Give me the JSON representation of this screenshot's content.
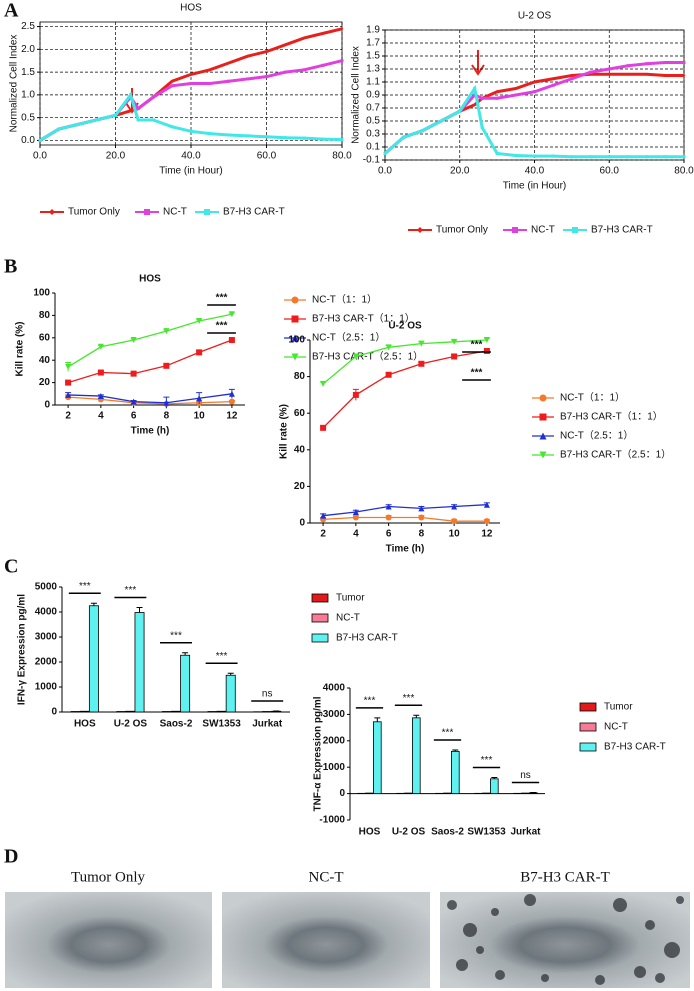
{
  "panel_labels": [
    "A",
    "B",
    "C",
    "D"
  ],
  "chart_data": [
    {
      "type": "line",
      "title": "HOS",
      "xlabel": "Time (in Hour)",
      "ylabel": "Normalized Cell Index",
      "x": [
        0,
        5,
        10,
        15,
        20,
        24,
        26,
        30,
        35,
        40,
        45,
        50,
        55,
        60,
        65,
        70,
        75,
        80
      ],
      "xlim": [
        0,
        80
      ],
      "xticks": [
        {
          "value": 0,
          "label": "0.0"
        },
        {
          "value": 20,
          "label": "20.0"
        },
        {
          "value": 40,
          "label": "40.0"
        },
        {
          "value": 60,
          "label": "60.0"
        },
        {
          "value": 80,
          "label": "80.0"
        }
      ],
      "ylim": [
        -0.1,
        2.6
      ],
      "yticks": [
        {
          "value": 0,
          "label": "0.0"
        },
        0.5,
        {
          "value": 1,
          "label": "1.0"
        },
        1.5,
        {
          "value": 2,
          "label": "2.0"
        },
        2.5
      ],
      "grid": true,
      "legend": "bottom",
      "series": [
        {
          "name": "Tumor Only",
          "color": "#e8201c",
          "marker": "diamond",
          "values": [
            0,
            0.25,
            0.35,
            0.45,
            0.55,
            0.65,
            0.7,
            0.95,
            1.3,
            1.45,
            1.55,
            1.7,
            1.85,
            1.95,
            2.1,
            2.25,
            2.35,
            2.45
          ]
        },
        {
          "name": "NC-T",
          "color": "#e040e0",
          "marker": "square",
          "values": [
            0,
            0.25,
            0.35,
            0.45,
            0.55,
            0.95,
            0.7,
            0.95,
            1.2,
            1.25,
            1.25,
            1.3,
            1.35,
            1.4,
            1.5,
            1.55,
            1.65,
            1.75
          ]
        },
        {
          "name": "B7-H3 CAR-T",
          "color": "#40e8e8",
          "marker": "square",
          "values": [
            0,
            0.25,
            0.35,
            0.45,
            0.55,
            1.0,
            0.45,
            0.45,
            0.3,
            0.2,
            0.15,
            0.12,
            0.1,
            0.08,
            0.06,
            0.05,
            0.03,
            0.02
          ]
        }
      ]
    },
    {
      "type": "line",
      "title": "U-2 OS",
      "xlabel": "Time (in Hour)",
      "ylabel": "Normalized Cell Index",
      "x": [
        0,
        5,
        10,
        15,
        20,
        24,
        26,
        30,
        35,
        40,
        45,
        50,
        55,
        60,
        65,
        70,
        75,
        80
      ],
      "xlim": [
        0,
        80
      ],
      "xticks": [
        {
          "value": 0,
          "label": "0.0"
        },
        {
          "value": 20,
          "label": "20.0"
        },
        {
          "value": 40,
          "label": "40.0"
        },
        {
          "value": 60,
          "label": "60.0"
        },
        {
          "value": 80,
          "label": "80.0"
        }
      ],
      "ylim": [
        -0.1,
        1.9
      ],
      "yticks": [
        -0.1,
        0.1,
        0.3,
        0.5,
        0.7,
        0.9,
        1.1,
        1.3,
        1.5,
        1.7,
        1.9
      ],
      "grid": true,
      "legend": "bottom",
      "series": [
        {
          "name": "Tumor Only",
          "color": "#e8201c",
          "marker": "diamond",
          "values": [
            0,
            0.25,
            0.35,
            0.5,
            0.65,
            0.75,
            0.85,
            0.95,
            1.0,
            1.1,
            1.15,
            1.2,
            1.22,
            1.22,
            1.22,
            1.22,
            1.2,
            1.2
          ]
        },
        {
          "name": "NC-T",
          "color": "#e040e0",
          "marker": "square",
          "values": [
            0,
            0.25,
            0.35,
            0.5,
            0.65,
            0.9,
            0.85,
            0.85,
            0.9,
            0.95,
            1.05,
            1.15,
            1.25,
            1.3,
            1.35,
            1.38,
            1.4,
            1.4
          ]
        },
        {
          "name": "B7-H3 CAR-T",
          "color": "#40e8e8",
          "marker": "square",
          "values": [
            0,
            0.25,
            0.35,
            0.5,
            0.65,
            1.0,
            0.4,
            0.0,
            -0.03,
            -0.04,
            -0.04,
            -0.05,
            -0.05,
            -0.05,
            -0.05,
            -0.05,
            -0.05,
            -0.05
          ]
        }
      ]
    },
    {
      "type": "line",
      "title": "HOS",
      "xlabel": "Time (h)",
      "ylabel": "Kill rate (%)",
      "x": [
        2,
        4,
        6,
        8,
        10,
        12
      ],
      "xlim": [
        1.2,
        12.8
      ],
      "xticks": [
        2,
        4,
        6,
        8,
        10,
        12
      ],
      "ylim": [
        0,
        100
      ],
      "yticks": [
        0,
        20,
        40,
        60,
        80,
        100
      ],
      "grid": false,
      "legend": "right",
      "annotations": [
        "***",
        "***"
      ],
      "series": [
        {
          "name": "NC-T（1：1）",
          "color": "#f5792a",
          "marker": "circle",
          "values": [
            7,
            5,
            2,
            1,
            2,
            3
          ],
          "errors": [
            2,
            1,
            1,
            1,
            1,
            1
          ]
        },
        {
          "name": "B7-H3 CAR-T（1：1）",
          "color": "#ee1c1c",
          "marker": "square",
          "values": [
            20,
            29,
            28,
            35,
            47,
            58
          ],
          "errors": [
            1,
            1,
            1,
            1,
            1,
            1
          ]
        },
        {
          "name": "NC-T（2.5：1）",
          "color": "#2030d0",
          "marker": "triangle",
          "values": [
            9,
            8,
            3,
            2,
            6,
            10
          ],
          "errors": [
            2,
            1,
            1,
            5,
            5,
            4
          ]
        },
        {
          "name": "B7-H3 CAR-T（2.5：1）",
          "color": "#44e82c",
          "marker": "triangle-down",
          "values": [
            34,
            52,
            58,
            66,
            75,
            81
          ],
          "errors": [
            4,
            1,
            1,
            1,
            1,
            1
          ]
        }
      ]
    },
    {
      "type": "line",
      "title": "U-2 OS",
      "xlabel": "Time (h)",
      "ylabel": "Kill rate (%)",
      "x": [
        2,
        4,
        6,
        8,
        10,
        12
      ],
      "xlim": [
        1.2,
        12.8
      ],
      "xticks": [
        2,
        4,
        6,
        8,
        10,
        12
      ],
      "ylim": [
        0,
        100
      ],
      "yticks": [
        0,
        20,
        40,
        60,
        80,
        100
      ],
      "grid": false,
      "legend": "right",
      "annotations": [
        "***",
        "***"
      ],
      "series": [
        {
          "name": "NC-T（1：1）",
          "color": "#f5792a",
          "marker": "circle",
          "values": [
            2,
            3,
            3,
            3,
            1,
            1
          ],
          "errors": [
            1,
            1,
            1,
            1,
            1,
            1
          ]
        },
        {
          "name": "B7-H3 CAR-T（1：1）",
          "color": "#ee1c1c",
          "marker": "square",
          "values": [
            52,
            70,
            81,
            87,
            91,
            94
          ],
          "errors": [
            1,
            3,
            1,
            1,
            1,
            1
          ]
        },
        {
          "name": "NC-T（2.5：1）",
          "color": "#2030d0",
          "marker": "triangle",
          "values": [
            4,
            6,
            9,
            8,
            9,
            10
          ],
          "errors": [
            1,
            1,
            1,
            1,
            1,
            1
          ]
        },
        {
          "name": "B7-H3 CAR-T（2.5：1）",
          "color": "#44e82c",
          "marker": "triangle-down",
          "values": [
            76,
            91,
            96,
            98,
            99,
            100
          ],
          "errors": [
            1,
            1,
            1,
            1,
            1,
            1
          ]
        }
      ]
    },
    {
      "type": "bar",
      "ylabel": "IFN-γ Expression pg/ml",
      "categories": [
        "HOS",
        "U-2 OS",
        "Saos-2",
        "SW1353",
        "Jurkat"
      ],
      "ylim": [
        0,
        5000
      ],
      "yticks": [
        0,
        1000,
        2000,
        3000,
        4000,
        5000
      ],
      "grid": false,
      "legend": "right",
      "annotations": [
        "***",
        "***",
        "***",
        "***",
        "ns"
      ],
      "series": [
        {
          "name": "Tumor",
          "color": "#e31a1c",
          "values": [
            20,
            20,
            20,
            20,
            10
          ]
        },
        {
          "name": "NC-T",
          "color": "#f77b95",
          "values": [
            30,
            30,
            30,
            30,
            20
          ]
        },
        {
          "name": "B7-H3 CAR-T",
          "color": "#5ff0f0",
          "values": [
            4250,
            3980,
            2270,
            1470,
            30
          ],
          "errors": [
            100,
            200,
            100,
            80,
            10
          ]
        }
      ]
    },
    {
      "type": "bar",
      "ylabel": "TNF-α Expression pg/ml",
      "categories": [
        "HOS",
        "U-2 OS",
        "Saos-2",
        "SW1353",
        "Jurkat"
      ],
      "ylim": [
        -1000,
        4000
      ],
      "yticks": [
        -1000,
        0,
        1000,
        2000,
        3000,
        4000
      ],
      "grid": false,
      "legend": "right",
      "annotations": [
        "***",
        "***",
        "***",
        "***",
        "ns"
      ],
      "series": [
        {
          "name": "Tumor",
          "color": "#e31a1c",
          "values": [
            10,
            10,
            10,
            10,
            10
          ]
        },
        {
          "name": "NC-T",
          "color": "#f77b95",
          "values": [
            20,
            20,
            20,
            20,
            20
          ]
        },
        {
          "name": "B7-H3 CAR-T",
          "color": "#5ff0f0",
          "values": [
            2720,
            2870,
            1600,
            560,
            30
          ],
          "errors": [
            150,
            100,
            50,
            50,
            10
          ]
        }
      ]
    }
  ],
  "images": {
    "labels": [
      "Tumor Only",
      "NC-T",
      "B7-H3 CAR-T"
    ]
  }
}
